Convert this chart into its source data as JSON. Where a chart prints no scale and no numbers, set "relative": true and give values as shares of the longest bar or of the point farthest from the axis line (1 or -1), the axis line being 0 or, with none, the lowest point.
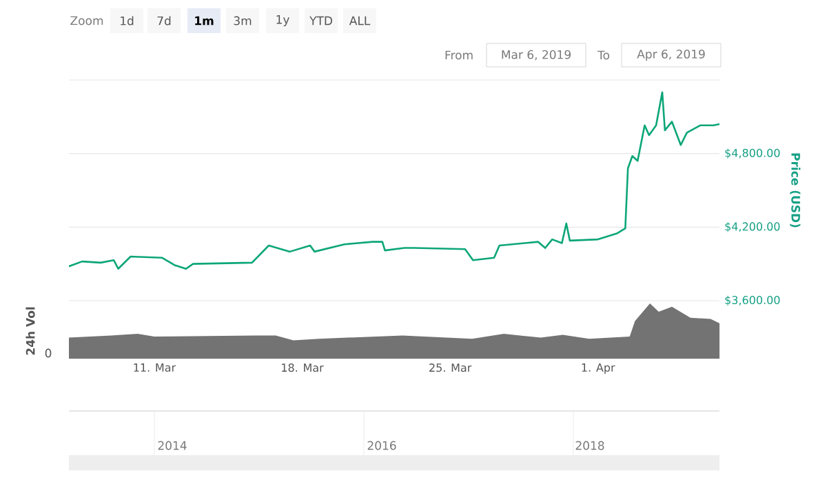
{
  "chart_data": [
    {
      "type": "other",
      "annotations": [
        "Zoom",
        "1d",
        "7d",
        "1m",
        "3m",
        "1y",
        "YTD",
        "ALL",
        "From",
        "Mar 6, 2019",
        "To",
        "Apr 6, 2019"
      ]
    },
    {
      "type": "line",
      "ylabel": "Price (USD)",
      "xlim": [
        "2019-03-06T23:00",
        "2019-04-06T18:00"
      ],
      "ylim": [
        3600,
        5400
      ],
      "yticks": [
        {
          "value": 3600,
          "label": "$3,600.00"
        },
        {
          "value": 4200,
          "label": "$4,200.00"
        },
        {
          "value": 4800,
          "label": "$4,800.00"
        },
        {
          "value": 5400,
          "label": null
        }
      ],
      "grid": "y",
      "tick_labels": "y",
      "x": [
        "2019-03-06T23:00",
        "2019-03-07T14:00",
        "2019-03-08T11:00",
        "2019-03-09T02:00",
        "2019-03-09T07:00",
        "2019-03-09T21:00",
        "2019-03-11T09:00",
        "2019-03-11T23:00",
        "2019-03-12T12:00",
        "2019-03-12T20:00",
        "2019-03-15T15:00",
        "2019-03-16T10:00",
        "2019-03-17T10:00",
        "2019-03-18T09:00",
        "2019-03-18T14:00",
        "2019-03-20T00:00",
        "2019-03-21T08:00",
        "2019-03-21T19:00",
        "2019-03-21T22:00",
        "2019-03-22T20:00",
        "2019-03-23T07:00",
        "2019-03-25T17:00",
        "2019-03-26T02:00",
        "2019-03-27T02:00",
        "2019-03-27T08:00",
        "2019-03-29T04:00",
        "2019-03-29T12:00",
        "2019-03-29T20:00",
        "2019-03-30T07:00",
        "2019-03-30T12:00",
        "2019-03-30T16:00",
        "2019-04-01T00:00",
        "2019-04-01T22:00",
        "2019-04-02T07:00",
        "2019-04-02T10:00",
        "2019-04-02T15:00",
        "2019-04-02T21:00",
        "2019-04-03T05:00",
        "2019-04-03T10:00",
        "2019-04-03T18:00",
        "2019-04-04T01:00",
        "2019-04-04T04:00",
        "2019-04-04T12:00",
        "2019-04-04T22:00",
        "2019-04-05T05:00",
        "2019-04-05T20:00",
        "2019-04-06T11:00",
        "2019-04-06T18:00"
      ],
      "series": [
        {
          "color": "#0ca678",
          "values": [
            3880,
            3920,
            3910,
            3930,
            3860,
            3960,
            3950,
            3890,
            3860,
            3900,
            3910,
            4050,
            4000,
            4050,
            4000,
            4060,
            4080,
            4080,
            4010,
            4030,
            4030,
            4020,
            3930,
            3950,
            4050,
            4080,
            4030,
            4100,
            4070,
            4230,
            4090,
            4100,
            4150,
            4190,
            4680,
            4780,
            4740,
            5030,
            4950,
            5030,
            5300,
            4990,
            5060,
            4870,
            4970,
            5030,
            5030,
            5040
          ]
        }
      ]
    },
    {
      "type": "area",
      "relative": true,
      "ylabel": "24h Vol",
      "annotations": [
        "0"
      ],
      "xlim": [
        "2019-03-06T23:00",
        "2019-04-06T18:00"
      ],
      "xticks": [
        {
          "value": "2019-03-11",
          "label": "11. Mar"
        },
        {
          "value": "2019-03-18",
          "label": "18. Mar"
        },
        {
          "value": "2019-03-25",
          "label": "25. Mar"
        },
        {
          "value": "2019-04-01",
          "label": "1. Apr"
        }
      ],
      "tick_labels": "x",
      "x": [
        "2019-03-06T23:00",
        "2019-03-08T23:00",
        "2019-03-10T05:00",
        "2019-03-11T00:00",
        "2019-03-15T18:00",
        "2019-03-16T18:00",
        "2019-03-17T14:00",
        "2019-03-18T19:00",
        "2019-03-22T18:00",
        "2019-03-26T01:00",
        "2019-03-27T13:00",
        "2019-03-29T07:00",
        "2019-03-30T08:00",
        "2019-03-31T14:00",
        "2019-04-02T12:00",
        "2019-04-02T18:00",
        "2019-04-03T11:00",
        "2019-04-03T21:00",
        "2019-04-04T12:00",
        "2019-04-05T09:00",
        "2019-04-06T08:00",
        "2019-04-06T18:00"
      ],
      "series": [
        {
          "color": "#737373",
          "values": [
            0.38,
            0.42,
            0.45,
            0.4,
            0.42,
            0.42,
            0.33,
            0.36,
            0.42,
            0.36,
            0.45,
            0.38,
            0.43,
            0.36,
            0.4,
            0.68,
            1,
            0.85,
            0.94,
            0.74,
            0.72,
            0.64
          ]
        }
      ]
    },
    {
      "type": "other",
      "annotations": [
        "2014",
        "2016",
        "2018"
      ]
    }
  ]
}
